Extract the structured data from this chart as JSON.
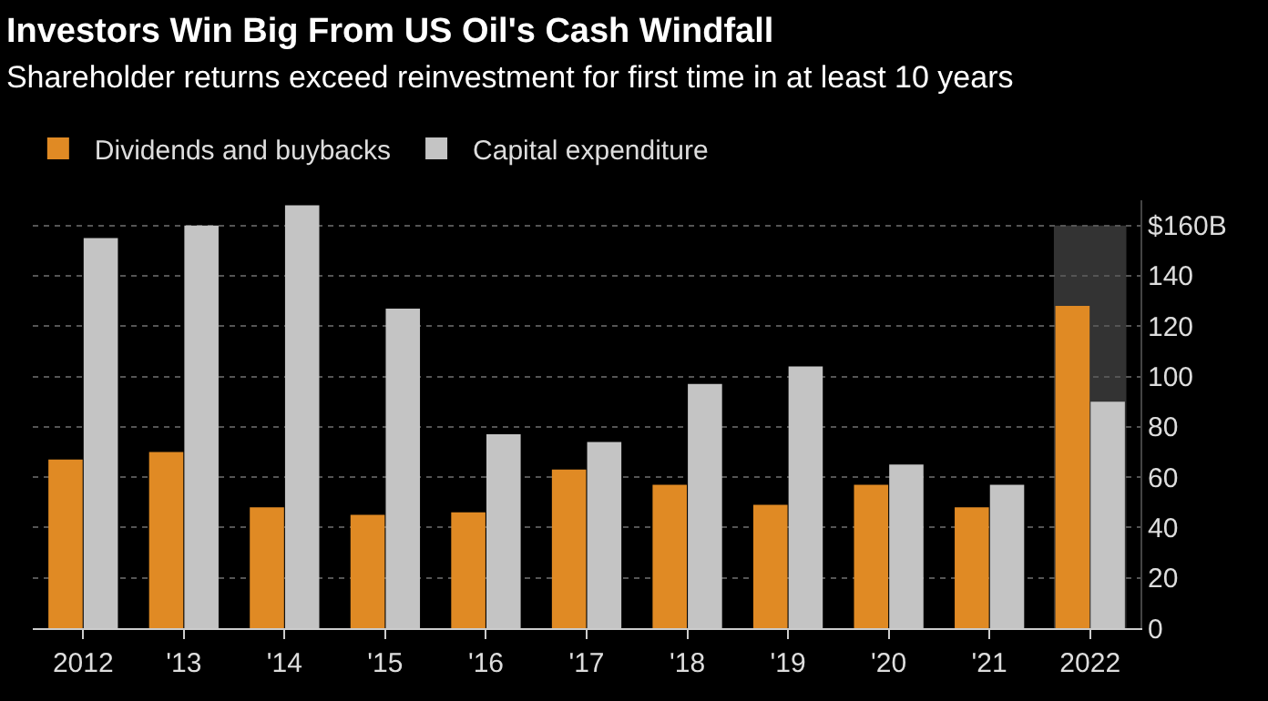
{
  "chart_data": {
    "type": "bar",
    "title": "Investors Win Big From US Oil's Cash Windfall",
    "subtitle": "Shareholder returns exceed reinvestment for first time in at least 10 years",
    "categories": [
      "2012",
      "'13",
      "'14",
      "'15",
      "'16",
      "'17",
      "'18",
      "'19",
      "'20",
      "'21",
      "2022"
    ],
    "series": [
      {
        "name": "Dividends and buybacks",
        "color": "#e08a24",
        "values": [
          67,
          70,
          48,
          45,
          46,
          63,
          57,
          49,
          57,
          48,
          128
        ]
      },
      {
        "name": "Capital expenditure",
        "color": "#c4c4c4",
        "values": [
          155,
          160,
          168,
          127,
          77,
          74,
          97,
          104,
          65,
          57,
          90
        ]
      }
    ],
    "ylim": [
      0,
      170
    ],
    "yticks": [
      0,
      20,
      40,
      60,
      80,
      100,
      120,
      140,
      {
        "value": 160,
        "label": "$160B"
      }
    ],
    "bands": [
      {
        "axis": "x",
        "from": "2022",
        "to": "2022",
        "color": "#333333"
      }
    ],
    "grid": "y",
    "legend": "top left"
  }
}
